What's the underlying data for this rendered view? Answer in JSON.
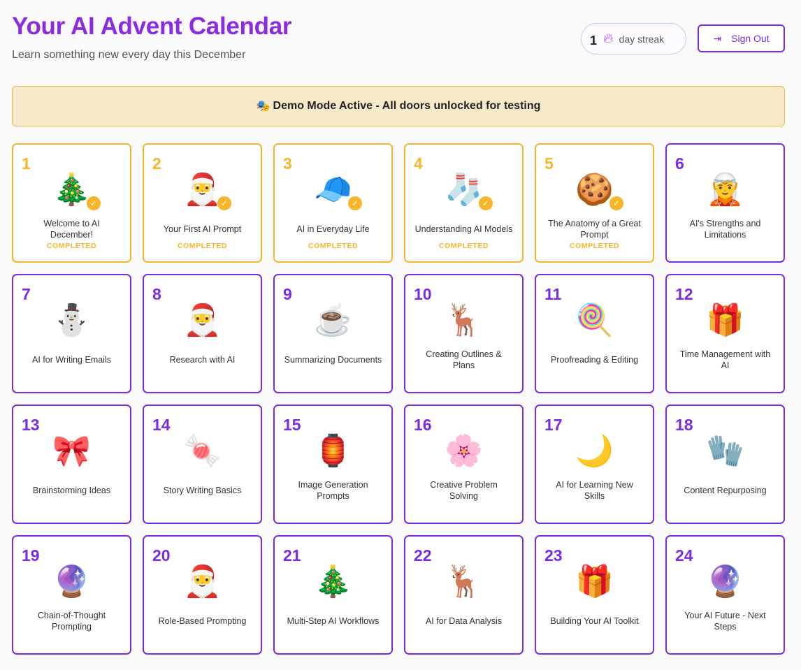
{
  "header": {
    "title": "Your AI Advent Calendar",
    "subtitle": "Learn something new every day this December"
  },
  "streak": {
    "icon": "flame-icon",
    "count": "1",
    "label": "day streak"
  },
  "signout": {
    "icon": "sign-out-icon",
    "label": "Sign Out"
  },
  "banner": {
    "icon": "🎭",
    "text": "Demo Mode Active - All doors unlocked for testing"
  },
  "colors": {
    "accent": "#7b2be6",
    "completed": "#f7b52a",
    "banner_bg": "#f6e9c9"
  },
  "completed_label": "COMPLETED",
  "days": [
    {
      "day": "1",
      "title": "Welcome to AI December!",
      "icon": "🎄",
      "completed": true
    },
    {
      "day": "2",
      "title": "Your First AI Prompt",
      "icon": "🎅",
      "completed": true
    },
    {
      "day": "3",
      "title": "AI in Everyday Life",
      "icon": "🧢",
      "completed": true
    },
    {
      "day": "4",
      "title": "Understanding AI Models",
      "icon": "🧦",
      "completed": true
    },
    {
      "day": "5",
      "title": "The Anatomy of a Great Prompt",
      "icon": "🍪",
      "completed": true
    },
    {
      "day": "6",
      "title": "AI's Strengths and Limitations",
      "icon": "🧝",
      "completed": false
    },
    {
      "day": "7",
      "title": "AI for Writing Emails",
      "icon": "⛄",
      "completed": false
    },
    {
      "day": "8",
      "title": "Research with AI",
      "icon": "🎅",
      "completed": false
    },
    {
      "day": "9",
      "title": "Summarizing Documents",
      "icon": "☕",
      "completed": false
    },
    {
      "day": "10",
      "title": "Creating Outlines & Plans",
      "icon": "🦌",
      "completed": false
    },
    {
      "day": "11",
      "title": "Proofreading & Editing",
      "icon": "🍭",
      "completed": false
    },
    {
      "day": "12",
      "title": "Time Management with AI",
      "icon": "🎁",
      "completed": false
    },
    {
      "day": "13",
      "title": "Brainstorming Ideas",
      "icon": "🎀",
      "completed": false
    },
    {
      "day": "14",
      "title": "Story Writing Basics",
      "icon": "🍬",
      "completed": false
    },
    {
      "day": "15",
      "title": "Image Generation Prompts",
      "icon": "🏮",
      "completed": false
    },
    {
      "day": "16",
      "title": "Creative Problem Solving",
      "icon": "🌸",
      "completed": false
    },
    {
      "day": "17",
      "title": "AI for Learning New Skills",
      "icon": "🌙",
      "completed": false
    },
    {
      "day": "18",
      "title": "Content Repurposing",
      "icon": "🧤",
      "completed": false
    },
    {
      "day": "19",
      "title": "Chain-of-Thought Prompting",
      "icon": "🔮",
      "completed": false
    },
    {
      "day": "20",
      "title": "Role-Based Prompting",
      "icon": "🎅",
      "completed": false
    },
    {
      "day": "21",
      "title": "Multi-Step AI Workflows",
      "icon": "🎄",
      "completed": false
    },
    {
      "day": "22",
      "title": "AI for Data Analysis",
      "icon": "🦌",
      "completed": false
    },
    {
      "day": "23",
      "title": "Building Your AI Toolkit",
      "icon": "🎁",
      "completed": false
    },
    {
      "day": "24",
      "title": "Your AI Future - Next Steps",
      "icon": "🔮",
      "completed": false
    }
  ]
}
